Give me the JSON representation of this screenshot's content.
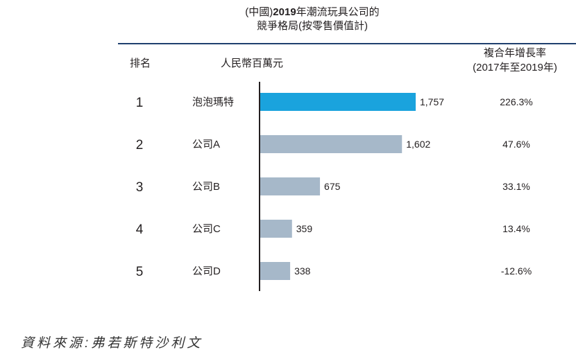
{
  "header": {
    "title_prefix": "(中國)",
    "title_year": "2019",
    "title_rest": "年潮流玩具公司的",
    "title_line2": "競爭格局(按零售價值計)",
    "rank_label": "排名",
    "unit_label": "人民幣百萬元",
    "cagr_label_line1": "複合年增長率",
    "cagr_label_line2": "(2017年至2019年)"
  },
  "colors": {
    "highlight_bar": "#1aa3dd",
    "other_bar": "#a6b8c9",
    "axis": "#231f20",
    "rule": "#1f3f6e"
  },
  "chart_data": {
    "type": "bar",
    "orientation": "horizontal",
    "title": "(中國)2019年潮流玩具公司的競爭格局(按零售價值計)",
    "xlabel": "人民幣百萬元",
    "ranks": [
      "1",
      "2",
      "3",
      "4",
      "5"
    ],
    "categories": [
      "泡泡瑪特",
      "公司A",
      "公司B",
      "公司C",
      "公司D"
    ],
    "values": [
      1757,
      1602,
      675,
      359,
      338
    ],
    "value_labels": [
      "1,757",
      "1,602",
      "675",
      "359",
      "338"
    ],
    "cagr": [
      "226.3%",
      "47.6%",
      "33.1%",
      "13.4%",
      "-12.6%"
    ],
    "highlight_index": 0,
    "xlim": [
      0,
      1757
    ]
  },
  "footer": {
    "source": "資料來源:弗若斯特沙利文"
  }
}
